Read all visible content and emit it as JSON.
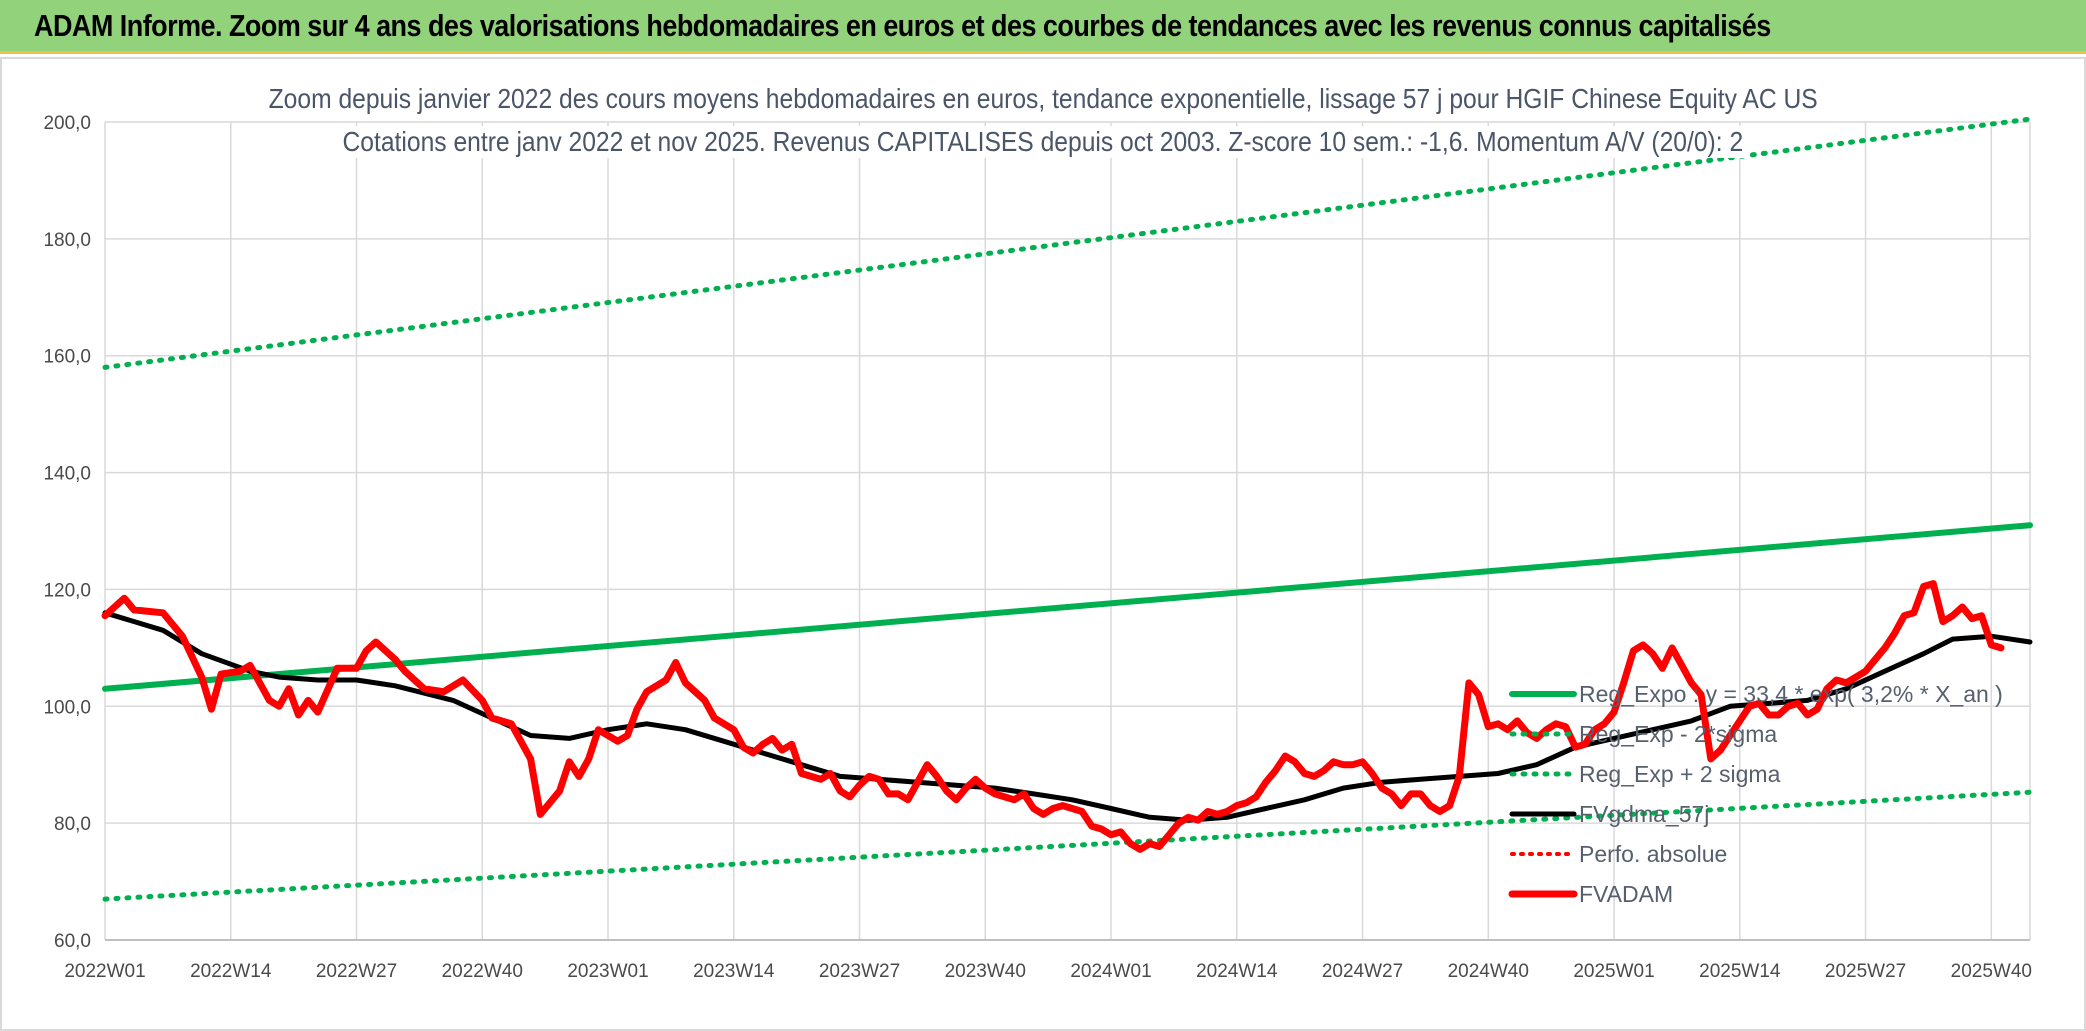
{
  "header": {
    "title": "ADAM Informe. Zoom sur 4 ans des valorisations hebdomadaires en euros et des courbes de tendances avec les revenus connus capitalisés"
  },
  "chart_data": {
    "type": "line",
    "title": "Zoom depuis janvier 2022 des cours moyens hebdomadaires en euros, tendance exponentielle, lissage 57 j pour HGIF Chinese Equity AC US",
    "subtitle": "Cotations entre janv 2022 et nov 2025. Revenus CAPITALISES depuis oct 2003. Z-score 10 sem.: -1,6. Momentum A/V (20/0): 2",
    "ylim": [
      60,
      200
    ],
    "yticks": [
      "60,0",
      "80,0",
      "100,0",
      "120,0",
      "140,0",
      "160,0",
      "180,0",
      "200,0"
    ],
    "ytick_values": [
      60,
      80,
      100,
      120,
      140,
      160,
      180,
      200
    ],
    "x_range_weeks": [
      0,
      199
    ],
    "xtick_labels": [
      "2022W01",
      "2022W14",
      "2022W27",
      "2022W40",
      "2023W01",
      "2023W14",
      "2023W27",
      "2023W40",
      "2024W01",
      "2024W14",
      "2024W27",
      "2024W40",
      "2025W01",
      "2025W14",
      "2025W27",
      "2025W40"
    ],
    "grid": true,
    "legend_position": "right, inside plot",
    "colors": {
      "reg_expo": "#00b050",
      "band": "#00b050",
      "smooth": "#000000",
      "perfo": "#ff0000",
      "fvadam": "#ff0000"
    },
    "series": [
      {
        "name": "Reg_Expo : y = 33,4 * exp( 3,2% *  X_an )",
        "key": "reg_expo",
        "style": "solid",
        "points": [
          [
            0,
            103.0
          ],
          [
            199,
            131.0
          ]
        ]
      },
      {
        "name": "Reg_Exp - 2*sigma",
        "key": "band_low",
        "style": "dotted",
        "points": [
          [
            0,
            67.0
          ],
          [
            199,
            85.3
          ]
        ]
      },
      {
        "name": "Reg_Exp + 2 sigma",
        "key": "band_high",
        "style": "dotted",
        "points": [
          [
            0,
            158.0
          ],
          [
            199,
            200.5
          ]
        ]
      },
      {
        "name": "FVgdma_57j",
        "key": "smooth",
        "style": "solid",
        "points": [
          [
            0,
            116
          ],
          [
            6,
            113
          ],
          [
            10,
            109
          ],
          [
            15,
            106
          ],
          [
            18,
            105
          ],
          [
            22,
            104.5
          ],
          [
            26,
            104.5
          ],
          [
            30,
            103.5
          ],
          [
            36,
            101
          ],
          [
            40,
            98
          ],
          [
            44,
            95
          ],
          [
            48,
            94.5
          ],
          [
            52,
            96
          ],
          [
            56,
            97
          ],
          [
            60,
            96
          ],
          [
            64,
            94
          ],
          [
            68,
            92
          ],
          [
            72,
            90
          ],
          [
            76,
            88
          ],
          [
            80,
            87.5
          ],
          [
            84,
            87
          ],
          [
            88,
            86.5
          ],
          [
            92,
            86
          ],
          [
            96,
            85
          ],
          [
            100,
            84
          ],
          [
            104,
            82.5
          ],
          [
            108,
            81
          ],
          [
            112,
            80.5
          ],
          [
            116,
            81
          ],
          [
            120,
            82.5
          ],
          [
            124,
            84
          ],
          [
            128,
            86
          ],
          [
            132,
            87
          ],
          [
            136,
            87.5
          ],
          [
            140,
            88
          ],
          [
            144,
            88.5
          ],
          [
            148,
            90
          ],
          [
            152,
            93
          ],
          [
            156,
            94.5
          ],
          [
            160,
            96
          ],
          [
            164,
            97.5
          ],
          [
            168,
            100
          ],
          [
            172,
            100.5
          ],
          [
            176,
            101
          ],
          [
            180,
            103
          ],
          [
            184,
            106
          ],
          [
            188,
            109
          ],
          [
            191,
            111.5
          ],
          [
            195,
            112
          ],
          [
            199,
            111
          ]
        ]
      },
      {
        "name": "Perfo. absolue",
        "key": "perfo",
        "style": "dotted",
        "points": []
      },
      {
        "name": "FVADAM",
        "key": "fvadam",
        "style": "solid",
        "points": [
          [
            0,
            115.5
          ],
          [
            2,
            118.5
          ],
          [
            3,
            116.5
          ],
          [
            6,
            116
          ],
          [
            8,
            112
          ],
          [
            10,
            105
          ],
          [
            11,
            99.5
          ],
          [
            12,
            105.5
          ],
          [
            14,
            106
          ],
          [
            15,
            107
          ],
          [
            17,
            101
          ],
          [
            18,
            100
          ],
          [
            19,
            103
          ],
          [
            20,
            98.5
          ],
          [
            21,
            101
          ],
          [
            22,
            99
          ],
          [
            24,
            106.5
          ],
          [
            26,
            106.5
          ],
          [
            27,
            109.5
          ],
          [
            28,
            111
          ],
          [
            30,
            108
          ],
          [
            31,
            106
          ],
          [
            33,
            103
          ],
          [
            35,
            102.5
          ],
          [
            37,
            104.5
          ],
          [
            39,
            101
          ],
          [
            40,
            98
          ],
          [
            42,
            97
          ],
          [
            44,
            91
          ],
          [
            45,
            81.5
          ],
          [
            47,
            85.5
          ],
          [
            48,
            90.5
          ],
          [
            49,
            88
          ],
          [
            50,
            91
          ],
          [
            51,
            96
          ],
          [
            53,
            94
          ],
          [
            54,
            95
          ],
          [
            55,
            99.5
          ],
          [
            56,
            102.5
          ],
          [
            58,
            104.5
          ],
          [
            59,
            107.5
          ],
          [
            60,
            104
          ],
          [
            62,
            101
          ],
          [
            63,
            98
          ],
          [
            65,
            96
          ],
          [
            66,
            93
          ],
          [
            67,
            92
          ],
          [
            68,
            93.5
          ],
          [
            69,
            94.5
          ],
          [
            70,
            92.5
          ],
          [
            71,
            93.5
          ],
          [
            72,
            88.5
          ],
          [
            73,
            88
          ],
          [
            74,
            87.5
          ],
          [
            75,
            88.5
          ],
          [
            76,
            85.5
          ],
          [
            77,
            84.5
          ],
          [
            78,
            86.5
          ],
          [
            79,
            88
          ],
          [
            80,
            87.5
          ],
          [
            81,
            85
          ],
          [
            82,
            85
          ],
          [
            83,
            84
          ],
          [
            84,
            87
          ],
          [
            85,
            90
          ],
          [
            86,
            88
          ],
          [
            87,
            85.5
          ],
          [
            88,
            84
          ],
          [
            89,
            86
          ],
          [
            90,
            87.5
          ],
          [
            91,
            86
          ],
          [
            92,
            85
          ],
          [
            94,
            84
          ],
          [
            95,
            85
          ],
          [
            96,
            82.5
          ],
          [
            97,
            81.5
          ],
          [
            98,
            82.5
          ],
          [
            99,
            83
          ],
          [
            100,
            82.5
          ],
          [
            101,
            82
          ],
          [
            102,
            79.5
          ],
          [
            103,
            79
          ],
          [
            104,
            78
          ],
          [
            105,
            78.5
          ],
          [
            106,
            76.5
          ],
          [
            107,
            75.5
          ],
          [
            108,
            76.5
          ],
          [
            109,
            76
          ],
          [
            110,
            78
          ],
          [
            111,
            80
          ],
          [
            112,
            81
          ],
          [
            113,
            80.5
          ],
          [
            114,
            82
          ],
          [
            115,
            81.5
          ],
          [
            116,
            82
          ],
          [
            117,
            83
          ],
          [
            118,
            83.5
          ],
          [
            119,
            84.5
          ],
          [
            120,
            87
          ],
          [
            121,
            89
          ],
          [
            122,
            91.5
          ],
          [
            123,
            90.5
          ],
          [
            124,
            88.5
          ],
          [
            125,
            88
          ],
          [
            126,
            89
          ],
          [
            127,
            90.5
          ],
          [
            128,
            90
          ],
          [
            129,
            90
          ],
          [
            130,
            90.5
          ],
          [
            131,
            88.5
          ],
          [
            132,
            86
          ],
          [
            133,
            85
          ],
          [
            134,
            83
          ],
          [
            135,
            85
          ],
          [
            136,
            85
          ],
          [
            137,
            83
          ],
          [
            138,
            82
          ],
          [
            139,
            83
          ],
          [
            140,
            88
          ],
          [
            141,
            104
          ],
          [
            142,
            102
          ],
          [
            143,
            96.5
          ],
          [
            144,
            97
          ],
          [
            145,
            96
          ],
          [
            146,
            97.5
          ],
          [
            147,
            95.5
          ],
          [
            148,
            94.5
          ],
          [
            149,
            96
          ],
          [
            150,
            97
          ],
          [
            151,
            96.5
          ],
          [
            152,
            93
          ],
          [
            153,
            93.5
          ],
          [
            154,
            96
          ],
          [
            155,
            97
          ],
          [
            156,
            99
          ],
          [
            157,
            104
          ],
          [
            158,
            109.5
          ],
          [
            159,
            110.5
          ],
          [
            160,
            109
          ],
          [
            161,
            106.5
          ],
          [
            162,
            110
          ],
          [
            163,
            107
          ],
          [
            164,
            104
          ],
          [
            165,
            102
          ],
          [
            166,
            91
          ],
          [
            167,
            92.5
          ],
          [
            168,
            95
          ],
          [
            169,
            97.5
          ],
          [
            170,
            100
          ],
          [
            171,
            100.5
          ],
          [
            172,
            98.5
          ],
          [
            173,
            98.5
          ],
          [
            174,
            100
          ],
          [
            175,
            100.5
          ],
          [
            176,
            98.5
          ],
          [
            177,
            99.5
          ],
          [
            178,
            103
          ],
          [
            179,
            104.5
          ],
          [
            180,
            104
          ],
          [
            181,
            105
          ],
          [
            182,
            106
          ],
          [
            183,
            108
          ],
          [
            184,
            110
          ],
          [
            185,
            112.5
          ],
          [
            186,
            115.5
          ],
          [
            187,
            116
          ],
          [
            188,
            120.5
          ],
          [
            189,
            121
          ],
          [
            190,
            114.5
          ],
          [
            191,
            115.5
          ],
          [
            192,
            117
          ],
          [
            193,
            115
          ],
          [
            194,
            115.5
          ],
          [
            195,
            110.5
          ],
          [
            196,
            110
          ]
        ]
      }
    ],
    "legend": [
      {
        "label": "Reg_Expo : y = 33,4 * exp( 3,2% *  X_an )",
        "style": "solid-green"
      },
      {
        "label": "Reg_Exp - 2*sigma",
        "style": "dotted-green"
      },
      {
        "label": "Reg_Exp + 2 sigma",
        "style": "dotted-green"
      },
      {
        "label": "FVgdma_57j",
        "style": "solid-black"
      },
      {
        "label": "Perfo. absolue",
        "style": "dotted-red"
      },
      {
        "label": "FVADAM",
        "style": "solid-red"
      }
    ]
  }
}
